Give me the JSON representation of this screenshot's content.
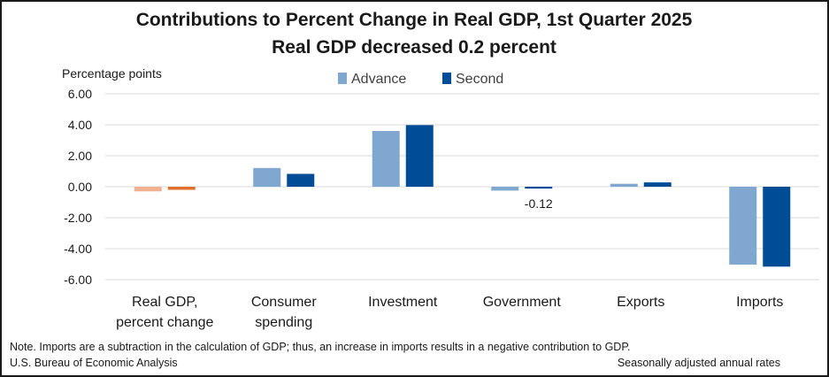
{
  "chart_data": {
    "type": "bar",
    "title": "Contributions to Percent Change in Real GDP, 1st Quarter 2025",
    "subtitle": "Real GDP decreased 0.2 percent",
    "ylabel": "Percentage points",
    "xlabel": "",
    "ylim": [
      -6,
      6
    ],
    "yticks": [
      "6.00",
      "4.00",
      "2.00",
      "0.00",
      "-2.00",
      "-4.00",
      "-6.00"
    ],
    "grid": true,
    "legend_position": "top-center",
    "categories": [
      [
        "Real GDP,",
        "percent change"
      ],
      [
        "Consumer",
        "spending"
      ],
      [
        "Investment"
      ],
      [
        "Government"
      ],
      [
        "Exports"
      ],
      [
        "Imports"
      ]
    ],
    "series": [
      {
        "name": "Advance",
        "color": "#7fa7cf",
        "first_bar_color": "#f2b191",
        "values": [
          -0.3,
          1.21,
          3.6,
          -0.25,
          0.19,
          -5.03
        ]
      },
      {
        "name": "Second",
        "color": "#004c97",
        "first_bar_color": "#e0702a",
        "values": [
          -0.2,
          0.83,
          3.98,
          -0.12,
          0.28,
          -5.16
        ]
      }
    ],
    "annotations": [
      {
        "text": "-0.12",
        "series": "Second",
        "category_index": 3
      }
    ]
  },
  "footer": {
    "note": "Note. Imports are a subtraction in the calculation of GDP; thus, an increase in imports results in a negative contribution to GDP.",
    "source": "U.S. Bureau of Economic Analysis",
    "rates": "Seasonally adjusted annual rates"
  }
}
